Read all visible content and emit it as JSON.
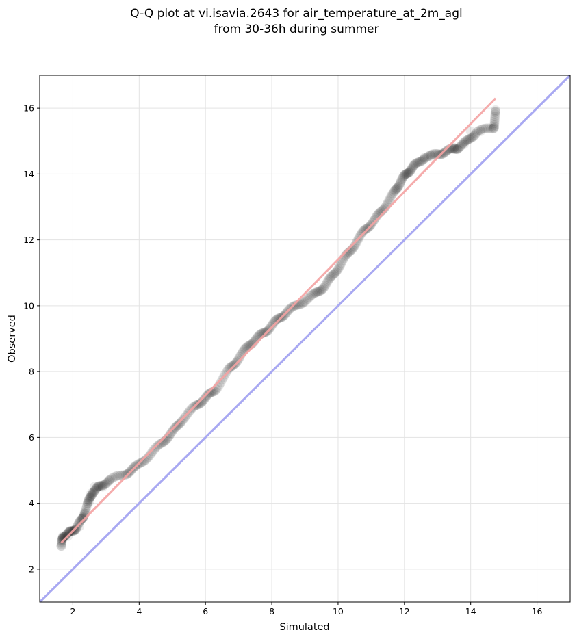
{
  "chart_data": {
    "type": "scatter",
    "title": "Q-Q plot at vi.isavia.2643 for air_temperature_at_2m_agl",
    "subtitle": "from 30-36h during summer",
    "xlabel": "Simulated",
    "ylabel": "Observed",
    "xlim": [
      1.0,
      17.0
    ],
    "ylim": [
      1.0,
      17.0
    ],
    "xticks": [
      2,
      4,
      6,
      8,
      10,
      12,
      14,
      16
    ],
    "yticks": [
      2,
      4,
      6,
      8,
      10,
      12,
      14,
      16
    ],
    "grid": true,
    "series": [
      {
        "kind": "quantile-points",
        "color": "#000000",
        "anchors": [
          [
            1.65,
            2.7
          ],
          [
            1.7,
            3.0
          ],
          [
            1.9,
            3.1
          ],
          [
            2.1,
            3.25
          ],
          [
            2.3,
            3.55
          ],
          [
            2.45,
            4.0
          ],
          [
            2.6,
            4.35
          ],
          [
            2.8,
            4.5
          ],
          [
            3.1,
            4.7
          ],
          [
            3.6,
            4.9
          ],
          [
            3.9,
            5.1
          ],
          [
            4.3,
            5.45
          ],
          [
            4.7,
            5.85
          ],
          [
            5.0,
            6.15
          ],
          [
            5.3,
            6.55
          ],
          [
            5.7,
            6.95
          ],
          [
            6.0,
            7.2
          ],
          [
            6.3,
            7.45
          ],
          [
            6.7,
            8.05
          ],
          [
            7.0,
            8.4
          ],
          [
            7.3,
            8.8
          ],
          [
            7.6,
            9.05
          ],
          [
            7.9,
            9.3
          ],
          [
            8.2,
            9.6
          ],
          [
            8.5,
            9.85
          ],
          [
            8.9,
            10.1
          ],
          [
            9.3,
            10.35
          ],
          [
            9.6,
            10.6
          ],
          [
            9.9,
            11.0
          ],
          [
            10.2,
            11.45
          ],
          [
            10.5,
            11.85
          ],
          [
            10.8,
            12.3
          ],
          [
            11.1,
            12.6
          ],
          [
            11.4,
            13.0
          ],
          [
            11.7,
            13.45
          ],
          [
            11.9,
            13.8
          ],
          [
            12.1,
            14.05
          ],
          [
            12.3,
            14.25
          ],
          [
            12.6,
            14.5
          ],
          [
            13.0,
            14.6
          ],
          [
            13.3,
            14.7
          ],
          [
            13.6,
            14.8
          ],
          [
            13.9,
            15.0
          ],
          [
            14.2,
            15.3
          ],
          [
            14.7,
            15.4
          ],
          [
            14.75,
            15.9
          ]
        ],
        "outliers": [
          [
            1.65,
            2.7
          ],
          [
            1.7,
            3.0
          ],
          [
            1.85,
            3.0
          ],
          [
            1.9,
            3.15
          ],
          [
            2.05,
            3.2
          ],
          [
            2.2,
            3.3
          ],
          [
            2.3,
            3.55
          ],
          [
            2.35,
            3.7
          ],
          [
            2.45,
            4.0
          ],
          [
            2.5,
            4.05
          ],
          [
            2.55,
            4.3
          ],
          [
            2.65,
            4.5
          ],
          [
            2.9,
            4.5
          ],
          [
            3.1,
            4.7
          ],
          [
            13.5,
            14.8
          ],
          [
            13.6,
            14.75
          ],
          [
            13.8,
            14.9
          ],
          [
            14.0,
            15.3
          ],
          [
            14.3,
            15.3
          ],
          [
            14.7,
            15.4
          ],
          [
            14.75,
            15.9
          ],
          [
            12.6,
            14.5
          ],
          [
            12.8,
            14.55
          ]
        ],
        "n_points": 420
      },
      {
        "kind": "fit-line",
        "color": "#f4a3a3",
        "start": [
          1.65,
          2.8
        ],
        "end": [
          14.75,
          16.3
        ]
      },
      {
        "kind": "identity-line",
        "color": "#a9a9f2",
        "start": [
          1.0,
          1.0
        ],
        "end": [
          17.0,
          17.0
        ]
      }
    ]
  }
}
